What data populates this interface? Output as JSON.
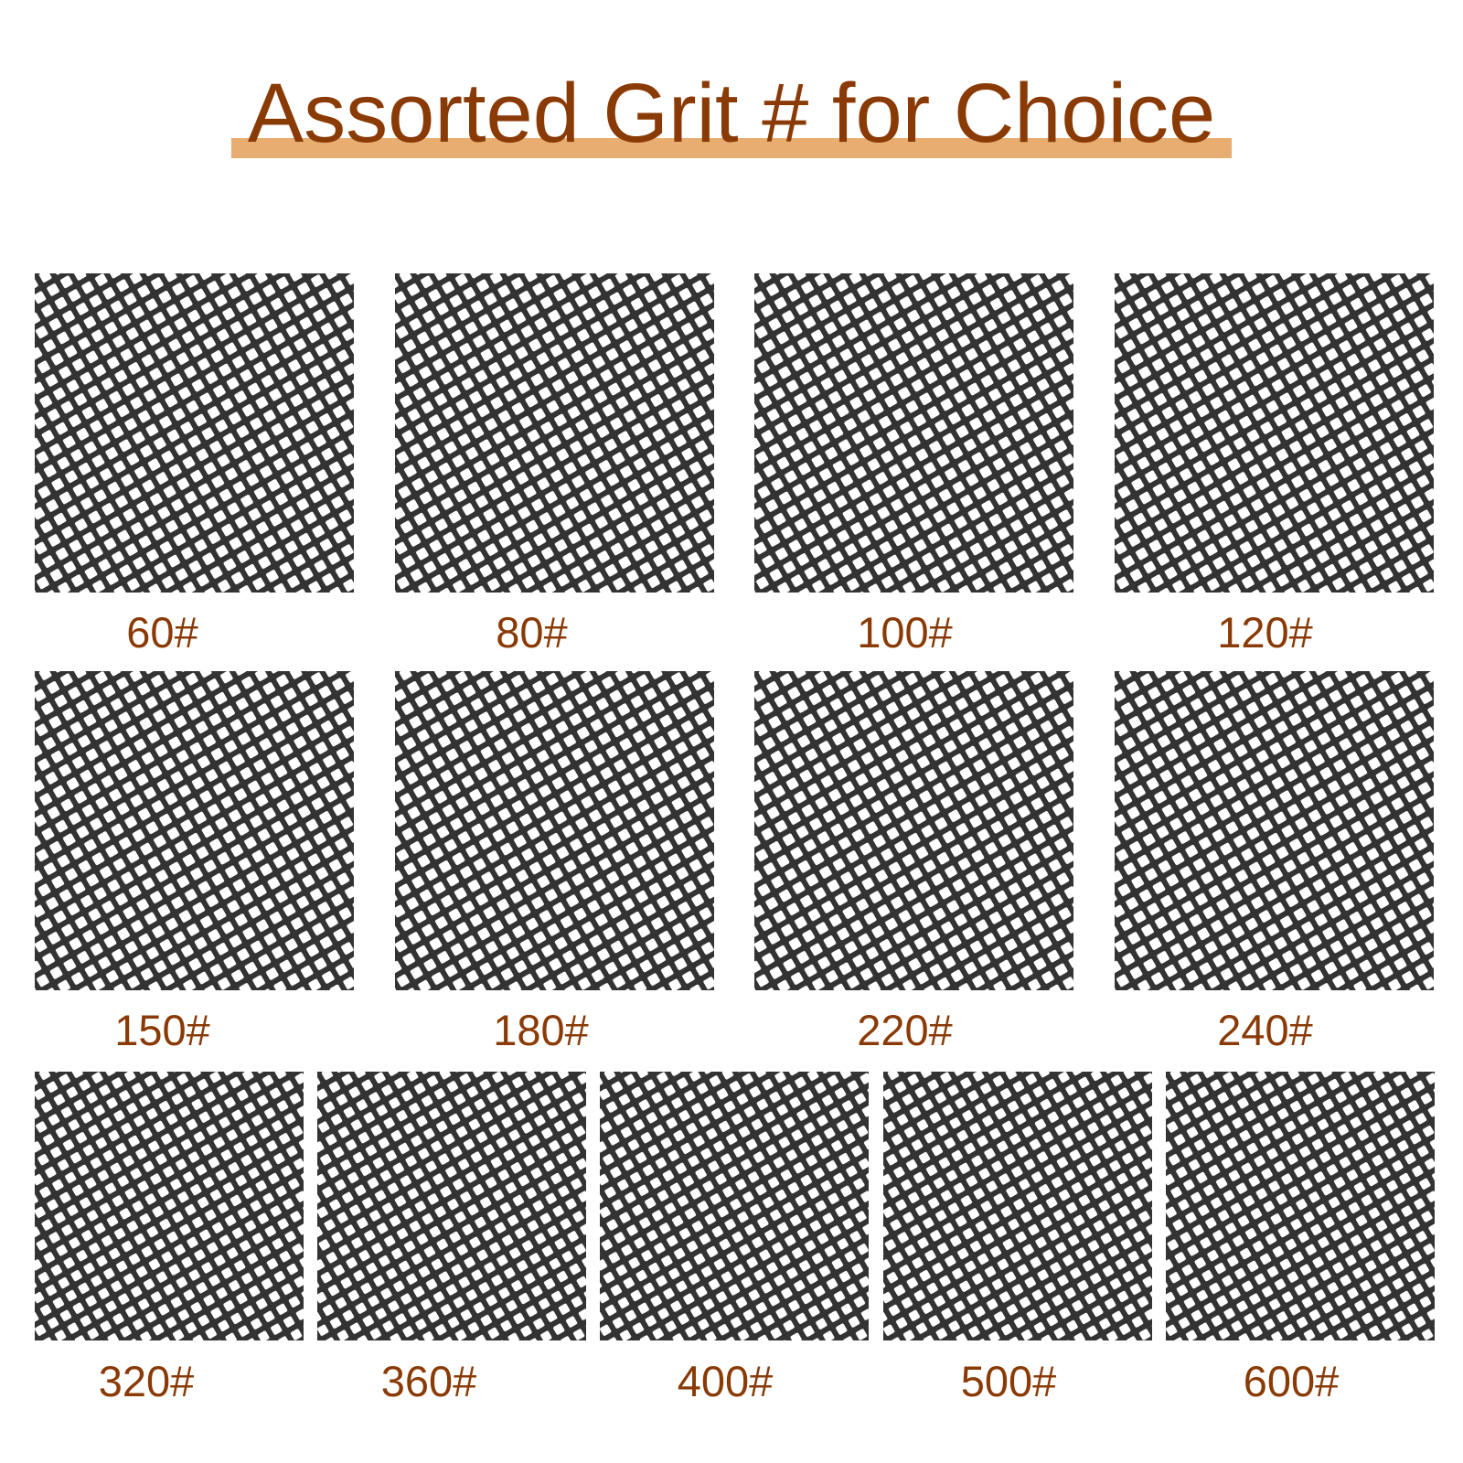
{
  "title": "Assorted Grit # for Choice",
  "colors": {
    "title_text": "#8a3a05",
    "title_underline": "#e8ad70",
    "mesh": "#333333"
  },
  "grits": [
    {
      "label": "60#"
    },
    {
      "label": "80#"
    },
    {
      "label": "100#"
    },
    {
      "label": "120#"
    },
    {
      "label": "150#"
    },
    {
      "label": "180#"
    },
    {
      "label": "220#"
    },
    {
      "label": "240#"
    },
    {
      "label": "320#"
    },
    {
      "label": "360#"
    },
    {
      "label": "400#"
    },
    {
      "label": "500#"
    },
    {
      "label": "600#"
    }
  ]
}
